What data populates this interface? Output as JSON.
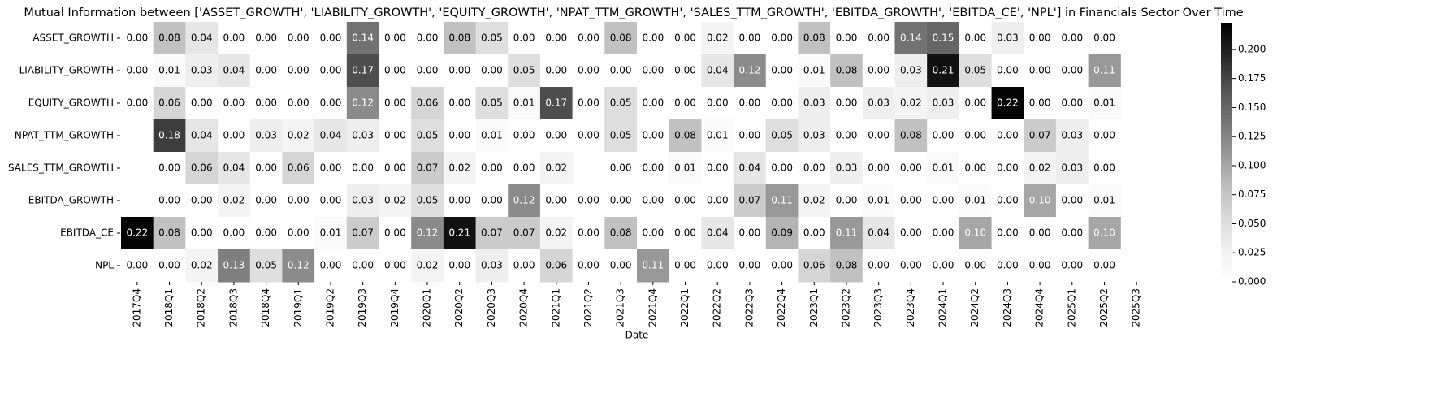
{
  "chart_data": {
    "type": "heatmap",
    "title": "Mutual Information between ['ASSET_GROWTH', 'LIABILITY_GROWTH', 'EQUITY_GROWTH', 'NPAT_TTM_GROWTH', 'SALES_TTM_GROWTH', 'EBITDA_GROWTH', 'EBITDA_CE', 'NPL'] in Financials Sector Over Time",
    "xlabel": "Date",
    "x_categories": [
      "2017Q4",
      "2018Q1",
      "2018Q2",
      "2018Q3",
      "2018Q4",
      "2019Q1",
      "2019Q2",
      "2019Q3",
      "2019Q4",
      "2020Q1",
      "2020Q2",
      "2020Q3",
      "2020Q4",
      "2021Q1",
      "2021Q2",
      "2021Q3",
      "2021Q4",
      "2022Q1",
      "2022Q2",
      "2022Q3",
      "2022Q4",
      "2023Q1",
      "2023Q2",
      "2023Q3",
      "2023Q4",
      "2024Q1",
      "2024Q2",
      "2024Q3",
      "2024Q4",
      "2025Q1",
      "2025Q2",
      "2025Q3"
    ],
    "y_categories": [
      "ASSET_GROWTH",
      "LIABILITY_GROWTH",
      "EQUITY_GROWTH",
      "NPAT_TTM_GROWTH",
      "SALES_TTM_GROWTH",
      "EBITDA_GROWTH",
      "EBITDA_CE",
      "NPL"
    ],
    "values": [
      [
        0,
        0.08,
        0.04,
        0,
        0,
        0,
        0,
        0.14,
        0,
        0,
        0.08,
        0.05,
        0,
        0,
        0,
        0.08,
        0,
        0,
        0.02,
        0,
        0,
        0.08,
        0,
        0,
        0.14,
        0.15,
        0,
        0.03,
        0,
        0,
        0,
        null
      ],
      [
        0,
        0.01,
        0.03,
        0.04,
        0,
        0,
        0,
        0.17,
        0,
        0,
        0,
        0,
        0.05,
        0,
        0,
        0,
        0,
        0,
        0.04,
        0.12,
        0,
        0.01,
        0.08,
        0,
        0.03,
        0.21,
        0.05,
        0,
        0,
        0,
        0.11,
        null
      ],
      [
        0,
        0.06,
        0,
        0,
        0,
        0,
        0,
        0.12,
        0,
        0.06,
        0,
        0.05,
        0.01,
        0.17,
        0,
        0.05,
        0,
        0,
        0,
        0,
        0,
        0.03,
        0,
        0.03,
        0.02,
        0.03,
        0,
        0.22,
        0,
        0,
        0.01,
        null
      ],
      [
        null,
        0.18,
        0.04,
        0,
        0.03,
        0.02,
        0.04,
        0.03,
        0,
        0.05,
        0,
        0.01,
        0,
        0,
        0,
        0.05,
        0,
        0.08,
        0.01,
        0,
        0.05,
        0.03,
        0,
        0,
        0.08,
        0,
        0,
        0,
        0.07,
        0.03,
        0,
        null
      ],
      [
        null,
        0,
        0.06,
        0.04,
        0,
        0.06,
        0,
        0,
        0,
        0.07,
        0.02,
        0,
        0,
        0.02,
        null,
        0,
        0,
        0.01,
        0,
        0.04,
        0,
        0,
        0.03,
        0,
        0,
        0.01,
        0,
        0,
        0.02,
        0.03,
        0,
        null
      ],
      [
        null,
        0,
        0,
        0.02,
        0,
        0,
        0,
        0.03,
        0.02,
        0.05,
        0,
        0,
        0.12,
        0,
        0,
        0,
        0,
        0,
        0,
        0.07,
        0.11,
        0.02,
        0,
        0.01,
        0,
        0,
        0.01,
        0,
        0.1,
        0,
        0.01,
        null
      ],
      [
        0.22,
        0.08,
        0,
        0,
        0,
        0,
        0.01,
        0.07,
        0,
        0.12,
        0.21,
        0.07,
        0.07,
        0.02,
        0,
        0.08,
        0,
        0,
        0.04,
        0,
        0.09,
        0,
        0.11,
        0.04,
        0,
        0,
        0.1,
        0,
        0,
        0,
        0.1,
        null
      ],
      [
        0,
        0,
        0.02,
        0.13,
        0.05,
        0.12,
        0,
        0,
        0,
        0.02,
        0,
        0.03,
        0,
        0.06,
        0,
        0,
        0.11,
        0,
        0,
        0,
        0,
        0.06,
        0.08,
        0,
        0,
        0,
        0,
        0,
        0,
        0,
        0,
        null
      ]
    ],
    "value_labels": [
      [
        "0.00",
        "0.08",
        "0.04",
        "0.00",
        "0.00",
        "0.00",
        "0.00",
        "0.14",
        "0.00",
        "0.00",
        "0.08",
        "0.05",
        "0.00",
        "0.00",
        "0.00",
        "0.08",
        "0.00",
        "0.00",
        "0.02",
        "0.00",
        "0.00",
        "0.08",
        "0.00",
        "0.00",
        "0.14",
        "0.15",
        "0.00",
        "0.03",
        "0.00",
        "0.00",
        "0.00",
        null
      ],
      [
        "0.00",
        "0.01",
        "0.03",
        "0.04",
        "0.00",
        "0.00",
        "0.00",
        "0.17",
        "0.00",
        "0.00",
        "0.00",
        "0.00",
        "0.05",
        "0.00",
        "0.00",
        "0.00",
        "0.00",
        "0.00",
        "0.04",
        "0.12",
        "0.00",
        "0.01",
        "0.08",
        "0.00",
        "0.03",
        "0.21",
        "0.05",
        "0.00",
        "0.00",
        "0.00",
        "0.11",
        null
      ],
      [
        "0.00",
        "0.06",
        "0.00",
        "0.00",
        "0.00",
        "0.00",
        "0.00",
        "0.12",
        "0.00",
        "0.06",
        "0.00",
        "0.05",
        "0.01",
        "0.17",
        "0.00",
        "0.05",
        "0.00",
        "0.00",
        "0.00",
        "0.00",
        "0.00",
        "0.03",
        "0.00",
        "0.03",
        "0.02",
        "0.03",
        "0.00",
        "0.22",
        "0.00",
        "0.00",
        "0.01",
        null
      ],
      [
        null,
        "0.18",
        "0.04",
        "0.00",
        "0.03",
        "0.02",
        "0.04",
        "0.03",
        "0.00",
        "0.05",
        "0.00",
        "0.01",
        "0.00",
        "0.00",
        "0.00",
        "0.05",
        "0.00",
        "0.08",
        "0.01",
        "0.00",
        "0.05",
        "0.03",
        "0.00",
        "0.00",
        "0.08",
        "0.00",
        "0.00",
        "0.00",
        "0.07",
        "0.03",
        "0.00",
        null
      ],
      [
        null,
        "0.00",
        "0.06",
        "0.04",
        "0.00",
        "0.06",
        "0.00",
        "0.00",
        "0.00",
        "0.07",
        "0.02",
        "0.00",
        "0.00",
        "0.02",
        null,
        "0.00",
        "0.00",
        "0.01",
        "0.00",
        "0.04",
        "0.00",
        "0.00",
        "0.03",
        "0.00",
        "0.00",
        "0.01",
        "0.00",
        "0.00",
        "0.02",
        "0.03",
        "0.00",
        null
      ],
      [
        null,
        "0.00",
        "0.00",
        "0.02",
        "0.00",
        "0.00",
        "0.00",
        "0.03",
        "0.02",
        "0.05",
        "0.00",
        "0.00",
        "0.12",
        "0.00",
        "0.00",
        "0.00",
        "0.00",
        "0.00",
        "0.00",
        "0.07",
        "0.11",
        "0.02",
        "0.00",
        "0.01",
        "0.00",
        "0.00",
        "0.01",
        "0.00",
        "0.10",
        "0.00",
        "0.01",
        null
      ],
      [
        "0.22",
        "0.08",
        "0.00",
        "0.00",
        "0.00",
        "0.00",
        "0.01",
        "0.07",
        "0.00",
        "0.12",
        "0.21",
        "0.07",
        "0.07",
        "0.02",
        "0.00",
        "0.08",
        "0.00",
        "0.00",
        "0.04",
        "0.00",
        "0.09",
        "0.00",
        "0.11",
        "0.04",
        "0.00",
        "0.00",
        "0.10",
        "0.00",
        "0.00",
        "0.00",
        "0.10",
        null
      ],
      [
        "0.00",
        "0.00",
        "0.02",
        "0.13",
        "0.05",
        "0.12",
        "0.00",
        "0.00",
        "0.00",
        "0.02",
        "0.00",
        "0.03",
        "0.00",
        "0.06",
        "0.00",
        "0.00",
        "0.11",
        "0.00",
        "0.00",
        "0.00",
        "0.00",
        "0.06",
        "0.08",
        "0.00",
        "0.00",
        "0.00",
        "0.00",
        "0.00",
        "0.00",
        "0.00",
        "0.00",
        null
      ]
    ],
    "colormap": [
      "#ffffff",
      "#f0f0f0",
      "#d9d9d9",
      "#bdbdbd",
      "#969696",
      "#737373",
      "#525252",
      "#252525",
      "#000000"
    ],
    "clim": [
      0,
      0.223
    ],
    "cticks": [
      {
        "value": 0,
        "label": "0.000"
      },
      {
        "value": 0.025,
        "label": "0.025"
      },
      {
        "value": 0.05,
        "label": "0.050"
      },
      {
        "value": 0.075,
        "label": "0.075"
      },
      {
        "value": 0.1,
        "label": "0.100"
      },
      {
        "value": 0.125,
        "label": "0.125"
      },
      {
        "value": 0.15,
        "label": "0.150"
      },
      {
        "value": 0.175,
        "label": "0.175"
      },
      {
        "value": 0.2,
        "label": "0.200"
      }
    ]
  }
}
